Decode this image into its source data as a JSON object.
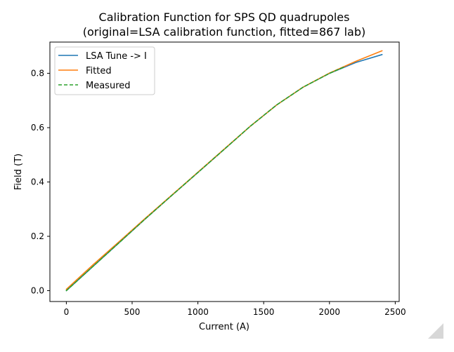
{
  "chart_data": {
    "type": "line",
    "title": "Calibration Function for SPS QD quadrupoles",
    "subtitle": "(original=LSA calibration function, fitted=867 lab)",
    "xlabel": "Current (A)",
    "ylabel": "Field (T)",
    "xlim": [
      -125,
      2530
    ],
    "ylim": [
      -0.04,
      0.915
    ],
    "xticks": [
      0,
      500,
      1000,
      1500,
      2000,
      2500
    ],
    "xtick_labels": [
      "0",
      "500",
      "1000",
      "1500",
      "2000",
      "2500"
    ],
    "yticks": [
      0.0,
      0.2,
      0.4,
      0.6,
      0.8
    ],
    "ytick_labels": [
      "0.0",
      "0.2",
      "0.4",
      "0.6",
      "0.8"
    ],
    "grid": false,
    "legend_position": "upper left",
    "series": [
      {
        "name": "LSA Tune -> I",
        "color": "#1f77b4",
        "style": "solid",
        "x": [
          0,
          200,
          400,
          600,
          800,
          1000,
          1200,
          1400,
          1600,
          1800,
          2000,
          2200,
          2400
        ],
        "y": [
          0.0,
          0.088,
          0.176,
          0.264,
          0.35,
          0.435,
          0.52,
          0.606,
          0.684,
          0.749,
          0.8,
          0.84,
          0.869
        ]
      },
      {
        "name": "Fitted",
        "color": "#ff7f0e",
        "style": "solid",
        "x": [
          0,
          200,
          400,
          600,
          800,
          1000,
          1200,
          1400,
          1600,
          1800,
          2000,
          2200,
          2400
        ],
        "y": [
          0.005,
          0.094,
          0.18,
          0.266,
          0.351,
          0.436,
          0.521,
          0.606,
          0.684,
          0.749,
          0.801,
          0.844,
          0.883
        ]
      },
      {
        "name": "Measured",
        "color": "#2ca02c",
        "style": "dashed",
        "x": [
          0,
          200,
          400,
          600,
          800,
          1000,
          1200,
          1400,
          1600,
          1800,
          2000,
          2110
        ],
        "y": [
          0.0,
          0.088,
          0.176,
          0.264,
          0.35,
          0.435,
          0.52,
          0.606,
          0.684,
          0.749,
          0.8,
          0.823
        ]
      }
    ]
  }
}
